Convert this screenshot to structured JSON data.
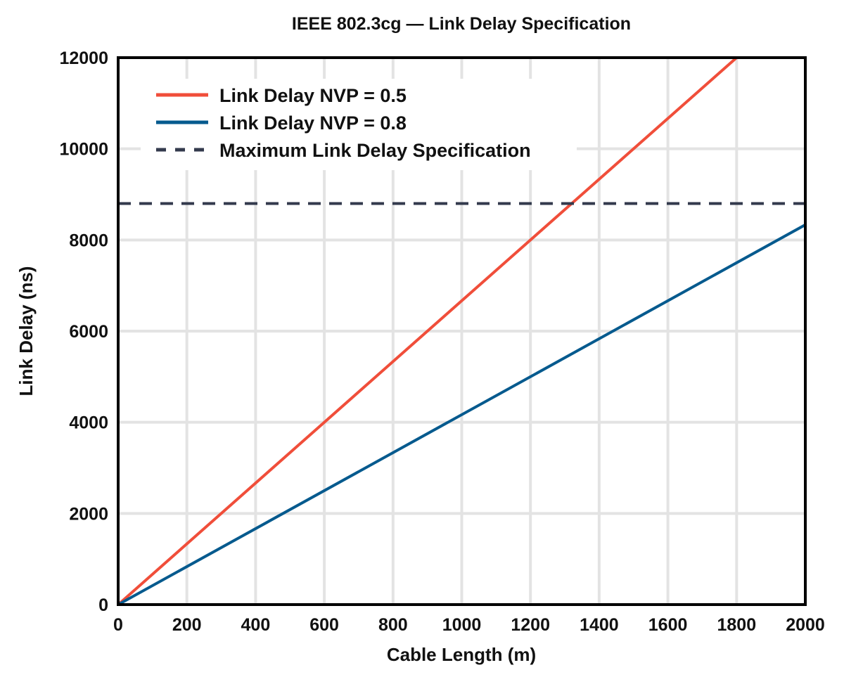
{
  "chart_data": {
    "type": "line",
    "title": "IEEE 802.3cg — Link Delay Specification",
    "xlabel": "Cable Length (m)",
    "ylabel": "Link Delay (ns)",
    "xlim": [
      0,
      2000
    ],
    "ylim": [
      0,
      12000
    ],
    "xticks": [
      0,
      200,
      400,
      600,
      800,
      1000,
      1200,
      1400,
      1600,
      1800,
      2000
    ],
    "yticks": [
      0,
      2000,
      4000,
      6000,
      8000,
      10000,
      12000
    ],
    "grid": true,
    "legend_position": "top-left",
    "series": [
      {
        "name": "Link Delay NVP = 0.5",
        "color": "#f04e3a",
        "style": "solid",
        "x": [
          0,
          2000
        ],
        "y": [
          0,
          13333
        ]
      },
      {
        "name": "Link Delay NVP = 0.8",
        "color": "#065a8e",
        "style": "solid",
        "x": [
          0,
          2000
        ],
        "y": [
          0,
          8333
        ]
      },
      {
        "name": "Maximum Link Delay Specification",
        "color": "#333a4d",
        "style": "dashed",
        "x": [
          0,
          2000
        ],
        "y": [
          8800,
          8800
        ]
      }
    ]
  }
}
